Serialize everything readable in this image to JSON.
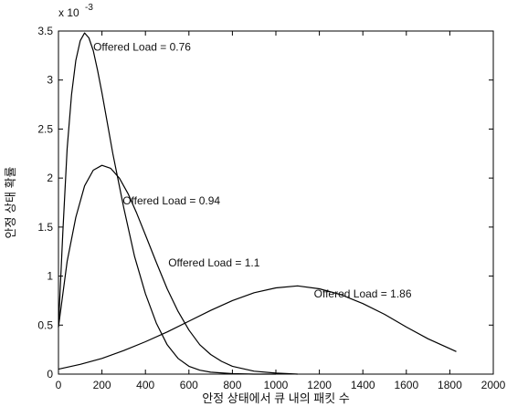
{
  "chart_data": {
    "type": "line",
    "title": "",
    "xlabel": "안정 상태에서 큐 내의 패킷 수",
    "ylabel": "안정 상태 확률",
    "y_exponent_prefix": "x 10",
    "y_exponent_power": "-3",
    "xlim": [
      0,
      2000
    ],
    "ylim": [
      0,
      3.5
    ],
    "y_scale_factor": 0.001,
    "grid": false,
    "legend": "none",
    "line_color": "#000000",
    "x_ticks": [
      0,
      200,
      400,
      600,
      800,
      1000,
      1200,
      1400,
      1600,
      1800,
      2000
    ],
    "x_tick_labels": [
      "0",
      "200",
      "400",
      "600",
      "800",
      "1000",
      "1200",
      "1400",
      "1600",
      "1800",
      "2000"
    ],
    "y_ticks": [
      0,
      0.5,
      1,
      1.5,
      2,
      2.5,
      3,
      3.5
    ],
    "y_tick_labels": [
      "0",
      "0.5",
      "1",
      "1.5",
      "2",
      "2.5",
      "3",
      "3.5"
    ],
    "series": [
      {
        "x": [
          0,
          20,
          40,
          60,
          80,
          100,
          120,
          140,
          160,
          180,
          200,
          250,
          300,
          350,
          400,
          450,
          500,
          550,
          600,
          650,
          700,
          800,
          900,
          1000
        ],
        "y": [
          0.48,
          1.45,
          2.3,
          2.85,
          3.2,
          3.4,
          3.48,
          3.43,
          3.3,
          3.1,
          2.87,
          2.25,
          1.7,
          1.2,
          0.82,
          0.52,
          0.3,
          0.16,
          0.08,
          0.04,
          0.02,
          0.005,
          0.0,
          0.0
        ]
      },
      {
        "x": [
          0,
          40,
          80,
          120,
          160,
          200,
          240,
          280,
          320,
          360,
          400,
          450,
          500,
          550,
          600,
          650,
          700,
          750,
          800,
          900,
          1000,
          1100
        ],
        "y": [
          0.48,
          1.15,
          1.6,
          1.92,
          2.08,
          2.13,
          2.1,
          2.0,
          1.84,
          1.64,
          1.42,
          1.14,
          0.87,
          0.64,
          0.45,
          0.3,
          0.2,
          0.13,
          0.08,
          0.03,
          0.01,
          0.0
        ]
      },
      {
        "x": [
          0,
          100,
          200,
          300,
          400,
          500,
          600,
          700,
          800,
          900,
          1000,
          1100,
          1200,
          1300,
          1400,
          1500,
          1600,
          1700,
          1800,
          1830
        ],
        "y": [
          0.05,
          0.1,
          0.16,
          0.24,
          0.33,
          0.43,
          0.54,
          0.65,
          0.75,
          0.83,
          0.88,
          0.9,
          0.87,
          0.81,
          0.72,
          0.61,
          0.48,
          0.36,
          0.26,
          0.23
        ]
      }
    ],
    "annotations": [
      {
        "text": "Offered Load = 0.76",
        "x": 160,
        "y": 3.3
      },
      {
        "text": "Offered Load = 0.94",
        "x": 295,
        "y": 1.73
      },
      {
        "text": "Offered Load = 1.1",
        "x": 505,
        "y": 1.1
      },
      {
        "text": "Offered Load = 1.86",
        "x": 1175,
        "y": 0.78
      }
    ]
  }
}
